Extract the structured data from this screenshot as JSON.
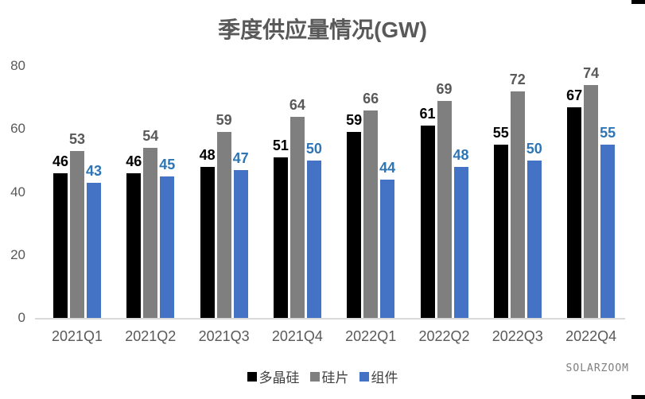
{
  "watermark": "SOLARZOOM",
  "chart_data": {
    "type": "bar",
    "title": "季度供应量情况(GW)",
    "categories": [
      "2021Q1",
      "2021Q2",
      "2021Q3",
      "2021Q4",
      "2022Q1",
      "2022Q2",
      "2022Q3",
      "2022Q4"
    ],
    "series": [
      {
        "key": "polysilicon",
        "name": "多晶硅",
        "color": "#000000",
        "label_color": "#000000",
        "values": [
          46,
          46,
          48,
          51,
          59,
          61,
          55,
          67
        ]
      },
      {
        "key": "wafer",
        "name": "硅片",
        "color": "#7f7f7f",
        "label_color": "#595959",
        "values": [
          53,
          54,
          59,
          64,
          66,
          69,
          72,
          74
        ]
      },
      {
        "key": "module",
        "name": "组件",
        "color": "#4472c4",
        "label_color": "#2e75b6",
        "values": [
          43,
          45,
          47,
          50,
          44,
          48,
          50,
          55
        ]
      }
    ],
    "ylim": [
      0,
      80
    ],
    "yticks": [
      0,
      20,
      40,
      60,
      80
    ],
    "grid": false,
    "data_labels": true,
    "legend_position": "bottom",
    "axis_text_color": "#595959",
    "axis_line_color": "#d9d9d9"
  }
}
